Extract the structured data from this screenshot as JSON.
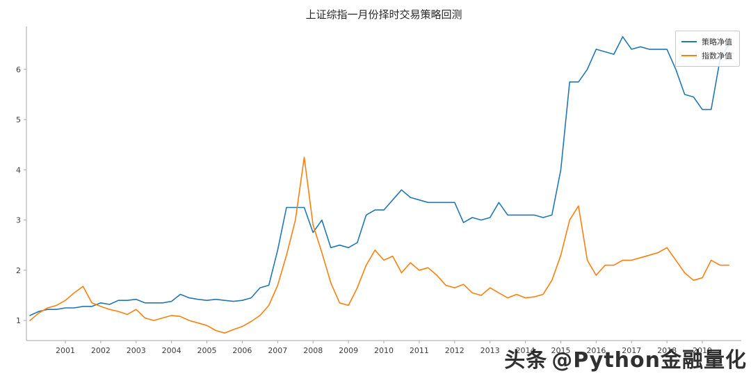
{
  "chart_data": {
    "type": "line",
    "title": "上证综指一月份择时交易策略回测",
    "xlabel": "",
    "ylabel": "",
    "xlim": [
      1999.9,
      2020.1
    ],
    "ylim": [
      0.6,
      6.8
    ],
    "grid": false,
    "legend_position": "upper right",
    "axis_color": "#a6a6a6",
    "xticks": [
      2001,
      2002,
      2003,
      2004,
      2005,
      2006,
      2007,
      2008,
      2009,
      2010,
      2011,
      2012,
      2013,
      2014,
      2015,
      2016,
      2017,
      2018,
      2019
    ],
    "yticks": [
      1,
      2,
      3,
      4,
      5,
      6
    ],
    "x": [
      2000.0,
      2000.25,
      2000.5,
      2000.75,
      2001.0,
      2001.25,
      2001.5,
      2001.75,
      2002.0,
      2002.25,
      2002.5,
      2002.75,
      2003.0,
      2003.25,
      2003.5,
      2003.75,
      2004.0,
      2004.25,
      2004.5,
      2004.75,
      2005.0,
      2005.25,
      2005.5,
      2005.75,
      2006.0,
      2006.25,
      2006.5,
      2006.75,
      2007.0,
      2007.25,
      2007.5,
      2007.75,
      2008.0,
      2008.25,
      2008.5,
      2008.75,
      2009.0,
      2009.25,
      2009.5,
      2009.75,
      2010.0,
      2010.25,
      2010.5,
      2010.75,
      2011.0,
      2011.25,
      2011.5,
      2011.75,
      2012.0,
      2012.25,
      2012.5,
      2012.75,
      2013.0,
      2013.25,
      2013.5,
      2013.75,
      2014.0,
      2014.25,
      2014.5,
      2014.75,
      2015.0,
      2015.25,
      2015.5,
      2015.75,
      2016.0,
      2016.25,
      2016.5,
      2016.75,
      2017.0,
      2017.25,
      2017.5,
      2017.75,
      2018.0,
      2018.25,
      2018.5,
      2018.75,
      2019.0,
      2019.25,
      2019.5,
      2019.75
    ],
    "series": [
      {
        "name": "策略净值",
        "color": "#1f77b4",
        "values": [
          1.1,
          1.18,
          1.22,
          1.22,
          1.25,
          1.25,
          1.28,
          1.28,
          1.35,
          1.32,
          1.4,
          1.4,
          1.42,
          1.35,
          1.35,
          1.35,
          1.38,
          1.52,
          1.45,
          1.42,
          1.4,
          1.42,
          1.4,
          1.38,
          1.4,
          1.45,
          1.65,
          1.7,
          2.4,
          3.25,
          3.25,
          3.25,
          2.75,
          3.0,
          2.45,
          2.5,
          2.45,
          2.55,
          3.1,
          3.2,
          3.2,
          3.4,
          3.6,
          3.45,
          3.4,
          3.35,
          3.35,
          3.35,
          3.35,
          2.95,
          3.05,
          3.0,
          3.05,
          3.35,
          3.1,
          3.1,
          3.1,
          3.1,
          3.05,
          3.1,
          4.0,
          5.75,
          5.75,
          6.0,
          6.4,
          6.35,
          6.3,
          6.65,
          6.4,
          6.45,
          6.4,
          6.4,
          6.4,
          6.0,
          5.5,
          5.45,
          5.2,
          5.2,
          6.2,
          6.5
        ]
      },
      {
        "name": "指数净值",
        "color": "#ff7f0e",
        "values": [
          1.0,
          1.15,
          1.25,
          1.3,
          1.4,
          1.55,
          1.68,
          1.35,
          1.28,
          1.22,
          1.18,
          1.12,
          1.22,
          1.05,
          1.0,
          1.05,
          1.1,
          1.08,
          1.0,
          0.95,
          0.9,
          0.8,
          0.75,
          0.82,
          0.88,
          0.98,
          1.1,
          1.3,
          1.7,
          2.3,
          3.0,
          4.25,
          2.9,
          2.35,
          1.75,
          1.35,
          1.3,
          1.65,
          2.1,
          2.4,
          2.2,
          2.28,
          1.95,
          2.15,
          2.0,
          2.05,
          1.9,
          1.7,
          1.65,
          1.72,
          1.55,
          1.5,
          1.65,
          1.55,
          1.45,
          1.52,
          1.45,
          1.47,
          1.52,
          1.8,
          2.3,
          3.0,
          3.28,
          2.2,
          1.9,
          2.1,
          2.1,
          2.2,
          2.2,
          2.25,
          2.3,
          2.35,
          2.45,
          2.2,
          1.95,
          1.8,
          1.85,
          2.2,
          2.1,
          2.1
        ]
      }
    ]
  },
  "watermark": {
    "brand": "头条",
    "handle": "@Python金融量化"
  }
}
